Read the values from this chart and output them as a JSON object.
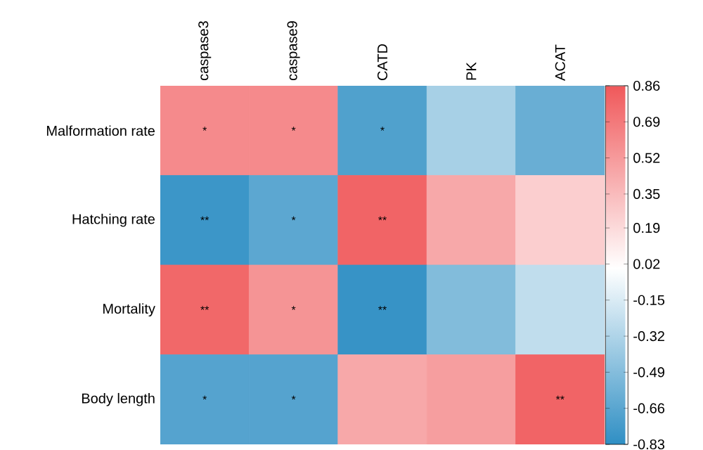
{
  "chart_data": {
    "type": "heatmap",
    "categories": [
      "caspase3",
      "caspase9",
      "CATD",
      "PK",
      "ACAT"
    ],
    "y_categories": [
      "Malformation rate",
      "Hatching rate",
      "Mortality",
      "Body length"
    ],
    "cells": [
      [
        0.6,
        0.6,
        -0.7,
        -0.35,
        -0.6
      ],
      [
        -0.78,
        -0.65,
        0.8,
        0.45,
        0.25
      ],
      [
        0.78,
        0.55,
        -0.8,
        -0.5,
        -0.25
      ],
      [
        -0.68,
        -0.68,
        0.45,
        0.5,
        0.8
      ]
    ],
    "cell_labels": [
      [
        "*",
        "*",
        "*",
        null,
        null
      ],
      [
        "**",
        "*",
        "**",
        null,
        null
      ],
      [
        "**",
        "*",
        "**",
        null,
        null
      ],
      [
        "*",
        "*",
        null,
        null,
        "**"
      ]
    ],
    "clim": [
      -0.83,
      0.86
    ],
    "cticks": [
      0.86,
      0.69,
      0.52,
      0.35,
      0.19,
      0.02,
      -0.15,
      -0.32,
      -0.49,
      -0.66,
      -0.83
    ]
  }
}
